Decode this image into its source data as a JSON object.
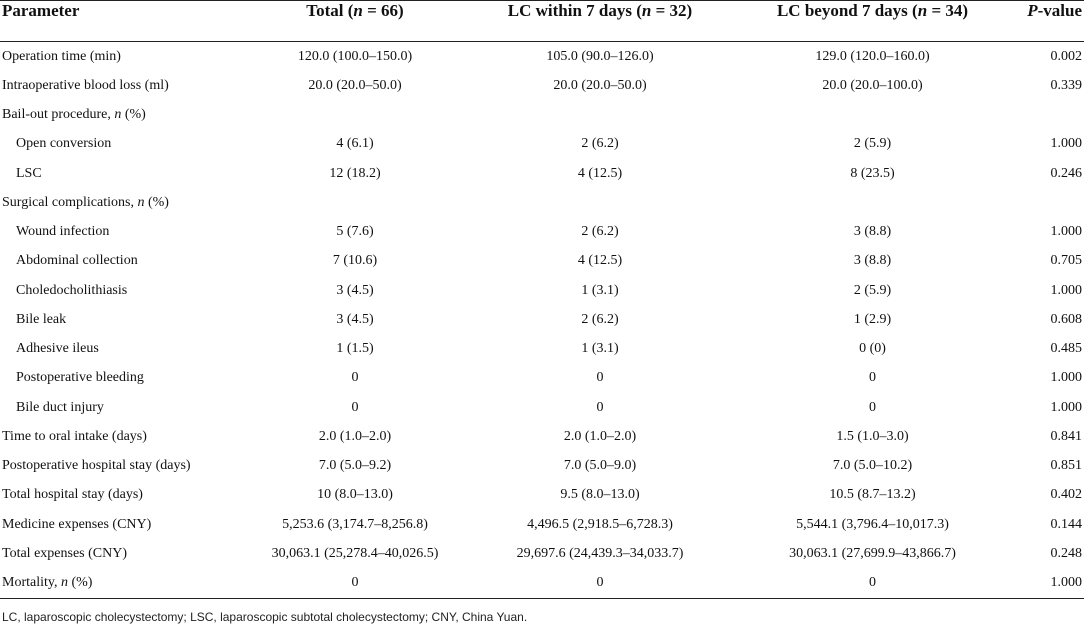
{
  "header": {
    "parameter": "Parameter",
    "total": "Total (n = 66)",
    "within": "LC within 7 days (n = 32)",
    "beyond": "LC beyond 7 days (n = 34)",
    "pvalue": "P-value"
  },
  "rows": [
    {
      "param": "Operation time (min)",
      "indent": false,
      "total": "120.0 (100.0–150.0)",
      "within": "105.0 (90.0–126.0)",
      "beyond": "129.0 (120.0–160.0)",
      "p": "0.002"
    },
    {
      "param": "Intraoperative blood loss (ml)",
      "indent": false,
      "total": "20.0 (20.0–50.0)",
      "within": "20.0 (20.0–50.0)",
      "beyond": "20.0 (20.0–100.0)",
      "p": "0.339"
    },
    {
      "param": "Bail-out procedure, n (%)",
      "indent": false,
      "total": "",
      "within": "",
      "beyond": "",
      "p": ""
    },
    {
      "param": "Open conversion",
      "indent": true,
      "total": "4 (6.1)",
      "within": "2 (6.2)",
      "beyond": "2 (5.9)",
      "p": "1.000"
    },
    {
      "param": "LSC",
      "indent": true,
      "total": "12 (18.2)",
      "within": "4 (12.5)",
      "beyond": "8 (23.5)",
      "p": "0.246"
    },
    {
      "param": "Surgical complications, n (%)",
      "indent": false,
      "total": "",
      "within": "",
      "beyond": "",
      "p": ""
    },
    {
      "param": "Wound infection",
      "indent": true,
      "total": "5 (7.6)",
      "within": "2 (6.2)",
      "beyond": "3 (8.8)",
      "p": "1.000"
    },
    {
      "param": "Abdominal collection",
      "indent": true,
      "total": "7 (10.6)",
      "within": "4 (12.5)",
      "beyond": "3 (8.8)",
      "p": "0.705"
    },
    {
      "param": "Choledocholithiasis",
      "indent": true,
      "total": "3 (4.5)",
      "within": "1 (3.1)",
      "beyond": "2 (5.9)",
      "p": "1.000"
    },
    {
      "param": "Bile leak",
      "indent": true,
      "total": "3 (4.5)",
      "within": "2 (6.2)",
      "beyond": "1 (2.9)",
      "p": "0.608"
    },
    {
      "param": "Adhesive ileus",
      "indent": true,
      "total": "1 (1.5)",
      "within": "1 (3.1)",
      "beyond": "0 (0)",
      "p": "0.485"
    },
    {
      "param": "Postoperative bleeding",
      "indent": true,
      "total": "0",
      "within": "0",
      "beyond": "0",
      "p": "1.000"
    },
    {
      "param": "Bile duct injury",
      "indent": true,
      "total": "0",
      "within": "0",
      "beyond": "0",
      "p": "1.000"
    },
    {
      "param": "Time to oral intake (days)",
      "indent": false,
      "total": "2.0 (1.0–2.0)",
      "within": "2.0 (1.0–2.0)",
      "beyond": "1.5 (1.0–3.0)",
      "p": "0.841"
    },
    {
      "param": "Postoperative hospital stay (days)",
      "indent": false,
      "total": "7.0 (5.0–9.2)",
      "within": "7.0 (5.0–9.0)",
      "beyond": "7.0 (5.0–10.2)",
      "p": "0.851"
    },
    {
      "param": "Total hospital stay (days)",
      "indent": false,
      "total": "10 (8.0–13.0)",
      "within": "9.5 (8.0–13.0)",
      "beyond": "10.5 (8.7–13.2)",
      "p": "0.402"
    },
    {
      "param": "Medicine expenses (CNY)",
      "indent": false,
      "total": "5,253.6 (3,174.7–8,256.8)",
      "within": "4,496.5 (2,918.5–6,728.3)",
      "beyond": "5,544.1 (3,796.4–10,017.3)",
      "p": "0.144"
    },
    {
      "param": "Total expenses (CNY)",
      "indent": false,
      "total": "30,063.1 (25,278.4–40,026.5)",
      "within": "29,697.6 (24,439.3–34,033.7)",
      "beyond": "30,063.1 (27,699.9–43,866.7)",
      "p": "0.248"
    },
    {
      "param": "Mortality, n (%)",
      "indent": false,
      "total": "0",
      "within": "0",
      "beyond": "0",
      "p": "1.000"
    }
  ],
  "footnote": "LC, laparoscopic cholecystectomy; LSC, laparoscopic subtotal cholecystectomy; CNY, China Yuan."
}
